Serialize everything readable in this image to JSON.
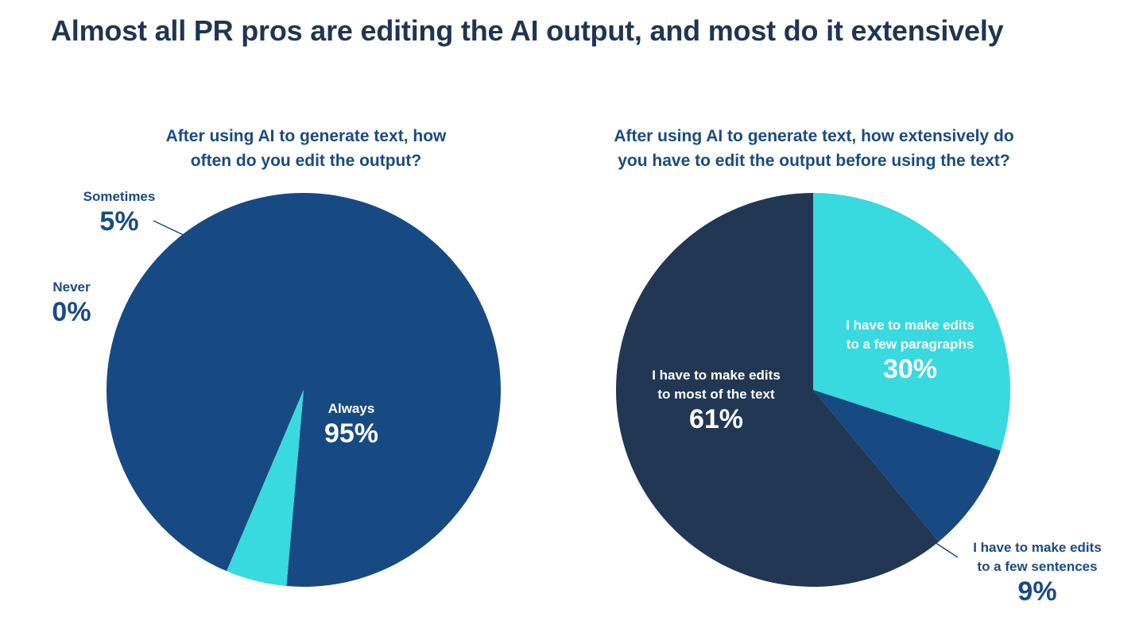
{
  "title": "Almost all PR pros are editing the AI output, and most do it extensively",
  "colors": {
    "cyan": "#38d9df",
    "blue": "#174a82",
    "navy": "#223754",
    "text_dark": "#1a4b82"
  },
  "chart_data": [
    {
      "type": "pie",
      "title_lines": [
        "After using AI to generate text, how",
        "often do you edit the output?"
      ],
      "slices": [
        {
          "label": "Always",
          "value": 95,
          "display": "95%",
          "color": "#174a82"
        },
        {
          "label": "Never",
          "value": 0,
          "display": "0%",
          "color": "#38d9df"
        },
        {
          "label": "Sometimes",
          "value": 5,
          "display": "5%",
          "color": "#38d9df"
        }
      ]
    },
    {
      "type": "pie",
      "title_lines": [
        "After using AI to generate text, how extensively do",
        "you have to edit the output before using the text?"
      ],
      "slices": [
        {
          "label_lines": [
            "I have to make edits",
            "to a few paragraphs"
          ],
          "value": 30,
          "display": "30%",
          "color": "#38d9df"
        },
        {
          "label_lines": [
            "I have to make edits",
            "to a few sentences"
          ],
          "value": 9,
          "display": "9%",
          "color": "#174a82"
        },
        {
          "label_lines": [
            "I have to make edits",
            "to most of the text"
          ],
          "value": 61,
          "display": "61%",
          "color": "#223754"
        }
      ]
    }
  ]
}
